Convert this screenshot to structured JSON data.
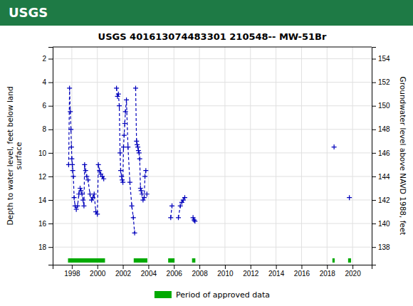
{
  "chart_data": {
    "type": "line",
    "title": "USGS 401613074483301 210548-- MW-51Br",
    "annotations": [
      "USGS"
    ],
    "ylabel": "Depth to water level, feet below land\nsurface",
    "y2label": "Groundwater level above NAVD 1988, feet",
    "x": [
      1997.75,
      1997.82,
      1997.88,
      1997.93,
      1997.97,
      1998.0,
      1998.04,
      1998.07,
      1998.12,
      1998.18,
      1998.25,
      1998.35,
      1998.45,
      1998.55,
      1998.65,
      1998.72,
      1998.8,
      1998.88,
      1998.95,
      1999.0,
      1999.08,
      1999.17,
      1999.27,
      1999.42,
      1999.55,
      1999.65,
      1999.75,
      1999.88,
      2000.0,
      2000.08,
      2000.17,
      2000.27,
      2000.38,
      2000.5,
      null,
      2001.5,
      2001.58,
      2001.65,
      2001.72,
      2001.78,
      2001.83,
      2001.9,
      2001.95,
      2002.0,
      2002.05,
      2002.1,
      2002.15,
      2002.2,
      2002.28,
      2002.4,
      2002.55,
      2002.7,
      2002.82,
      2002.92,
      null,
      2003.0,
      2003.07,
      2003.12,
      2003.17,
      2003.22,
      2003.27,
      2003.32,
      2003.38,
      2003.43,
      2003.5,
      2003.58,
      2003.67,
      2003.73,
      2003.8,
      null,
      2003.88,
      null,
      2005.75,
      2005.85,
      null,
      2006.35,
      2006.5,
      2006.62,
      2006.73,
      2006.85,
      null,
      2007.5,
      2007.58,
      2007.65,
      null,
      2018.55,
      null,
      2019.75
    ],
    "xlim": [
      1996.5,
      2021.5
    ],
    "xticks": [
      1998,
      2000,
      2002,
      2004,
      2006,
      2008,
      2010,
      2012,
      2014,
      2016,
      2018,
      2020
    ],
    "ylim": [
      19.5,
      1.0
    ],
    "yticks": [
      2,
      4,
      6,
      8,
      10,
      12,
      14,
      16,
      18
    ],
    "y2lim": [
      136.5,
      155.0
    ],
    "y2ticks": [
      138,
      140,
      142,
      144,
      146,
      148,
      150,
      152,
      154
    ],
    "grid": true,
    "legend": "bottom",
    "series": [
      {
        "type": "line",
        "color": "#0000bb",
        "marker": "plus",
        "line_style": "dashed",
        "values": [
          11.0,
          4.5,
          6.5,
          8.0,
          9.5,
          10.5,
          11.0,
          11.5,
          12.0,
          13.8,
          14.5,
          14.8,
          14.5,
          13.5,
          13.0,
          13.2,
          13.5,
          14.0,
          14.5,
          11.0,
          11.5,
          12.0,
          12.3,
          13.5,
          14.0,
          13.8,
          13.5,
          15.0,
          15.2,
          11.0,
          11.5,
          11.8,
          12.0,
          12.2,
          null,
          4.5,
          5.2,
          5.0,
          6.0,
          10.0,
          11.5,
          12.0,
          12.3,
          12.5,
          9.5,
          8.5,
          7.5,
          6.5,
          5.5,
          9.5,
          12.5,
          14.5,
          15.5,
          16.8,
          null,
          4.5,
          9.0,
          9.3,
          9.5,
          9.8,
          10.0,
          10.5,
          13.0,
          13.2,
          13.5,
          14.0,
          13.8,
          12.0,
          11.5,
          null,
          13.5,
          null,
          15.5,
          14.5,
          null,
          15.5,
          14.5,
          14.2,
          14.0,
          13.8,
          null,
          15.5,
          15.7,
          15.8,
          null,
          9.5,
          null,
          13.8
        ]
      },
      {
        "type": "span",
        "name": "Period of approved data",
        "color": "#00aa00",
        "values": [
          [
            1997.7,
            2000.6
          ],
          [
            2002.85,
            2003.92
          ],
          [
            2005.55,
            2006.05
          ],
          [
            2007.42,
            2007.68
          ],
          [
            2018.42,
            2018.6
          ],
          [
            2019.65,
            2019.88
          ]
        ]
      }
    ]
  }
}
